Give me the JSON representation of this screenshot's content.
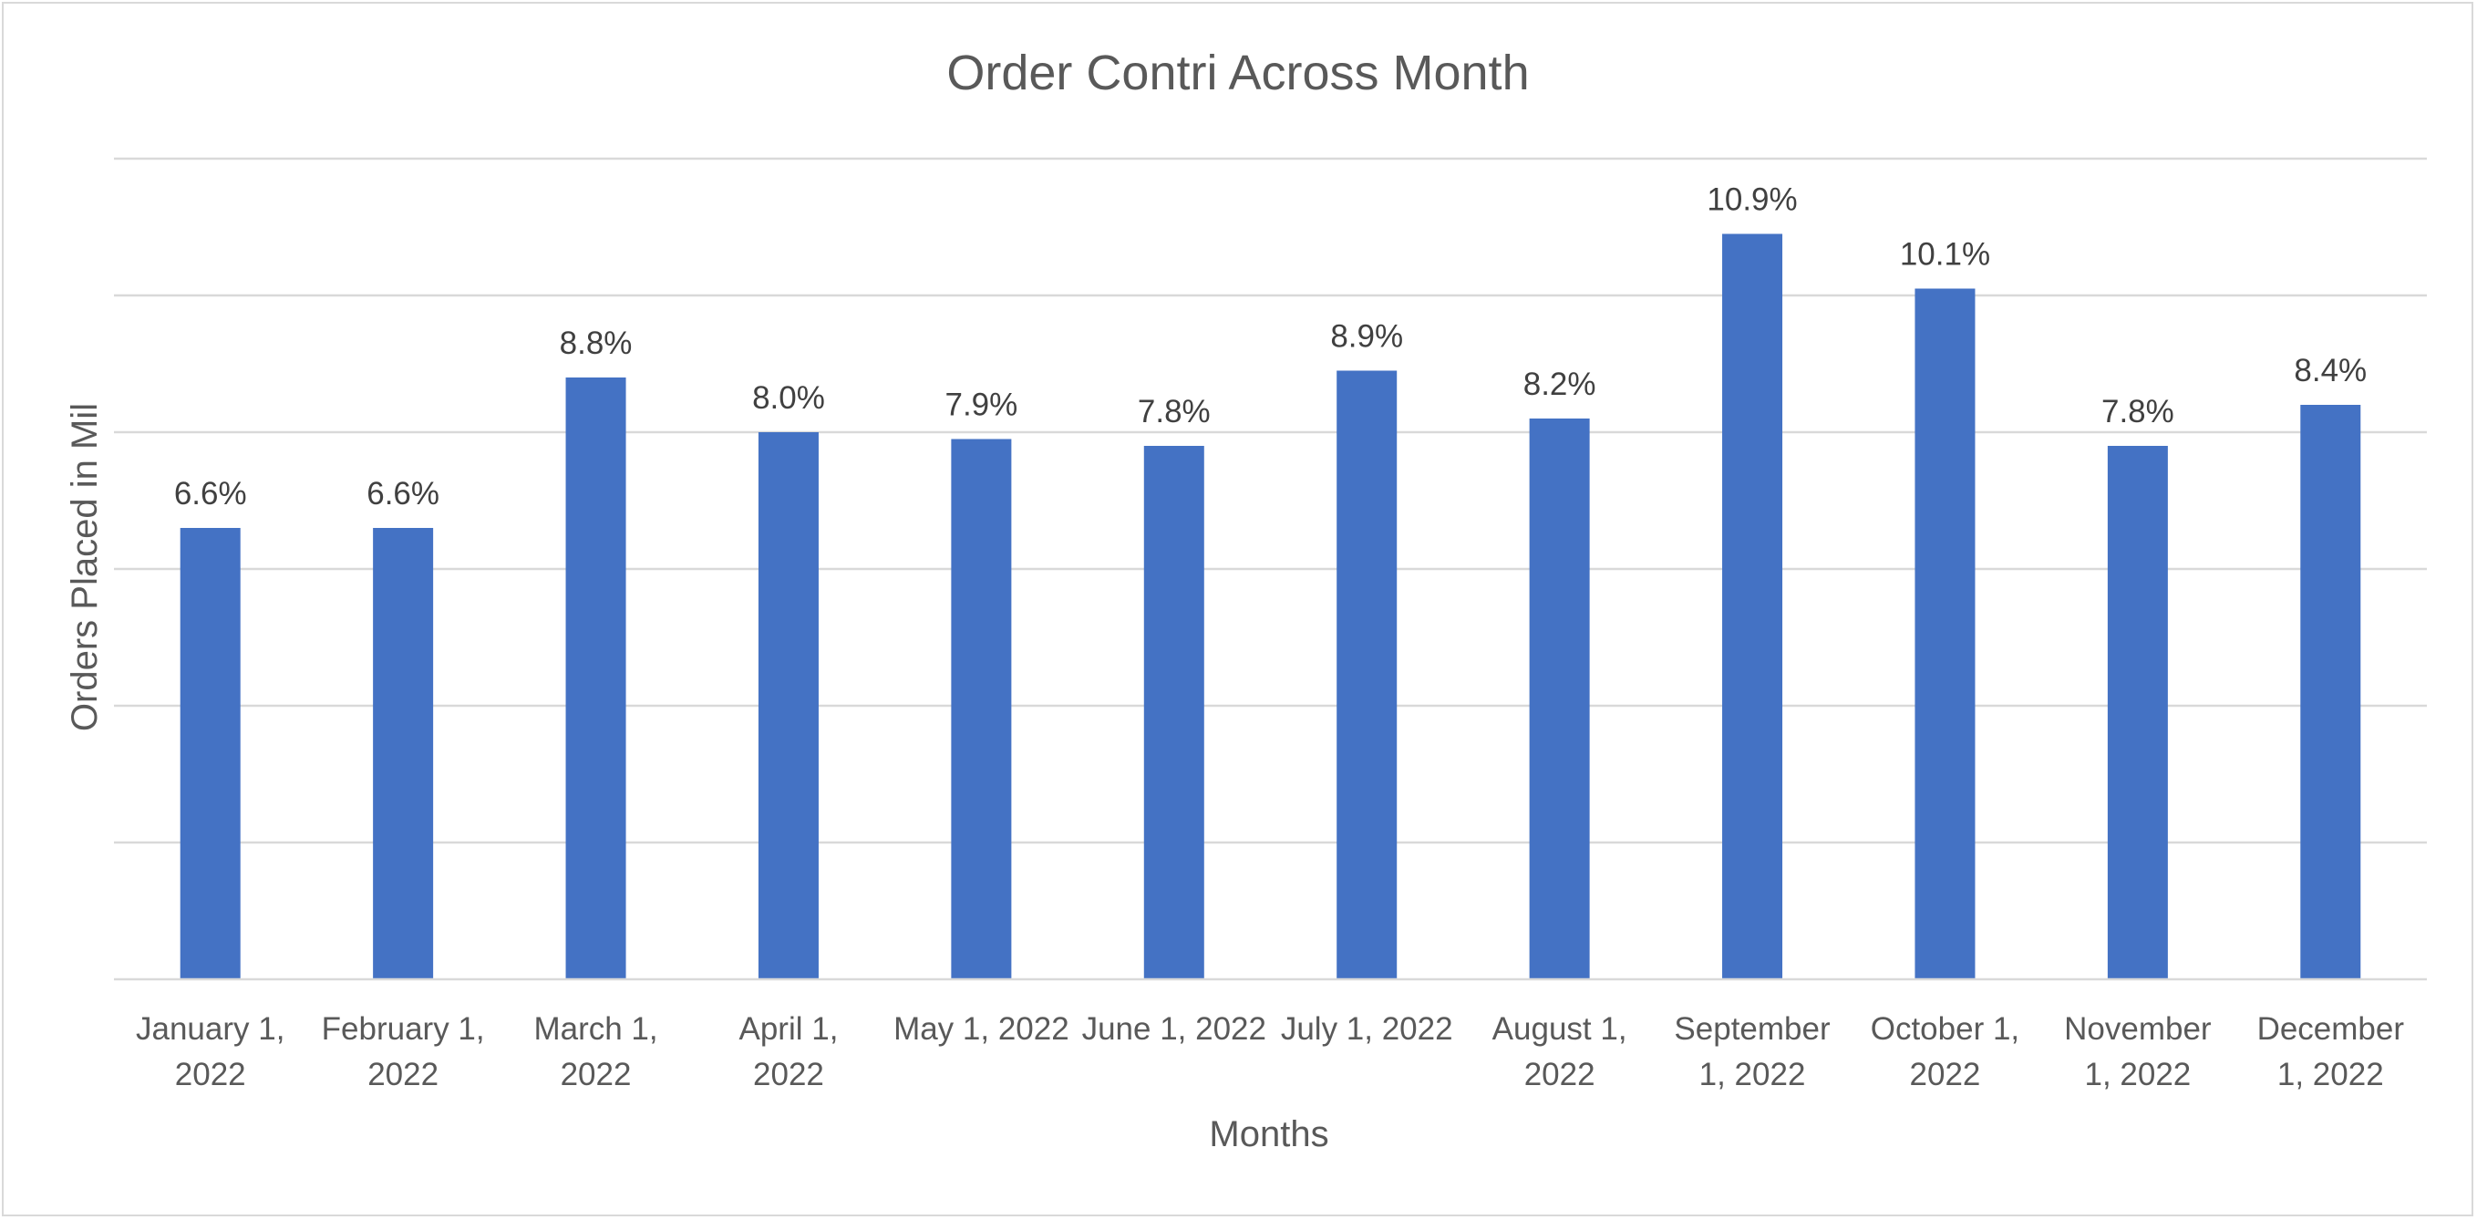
{
  "chart_data": {
    "type": "bar",
    "title": "Order Contri Across Month",
    "xlabel": "Months",
    "ylabel": "Orders Placed in Mil",
    "categories": [
      [
        "January 1,",
        "2022"
      ],
      [
        "February 1,",
        "2022"
      ],
      [
        "March 1,",
        "2022"
      ],
      [
        "April 1,",
        "2022"
      ],
      [
        "May 1, 2022"
      ],
      [
        "June 1, 2022"
      ],
      [
        "July 1, 2022"
      ],
      [
        "August 1,",
        "2022"
      ],
      [
        "September",
        "1, 2022"
      ],
      [
        "October 1,",
        "2022"
      ],
      [
        "November",
        "1, 2022"
      ],
      [
        "December",
        "1, 2022"
      ]
    ],
    "values": [
      6.6,
      6.6,
      8.8,
      8.0,
      7.9,
      7.8,
      8.9,
      8.2,
      10.9,
      10.1,
      7.8,
      8.4
    ],
    "data_labels": [
      "6.6%",
      "6.6%",
      "8.8%",
      "8.0%",
      "7.9%",
      "7.8%",
      "8.9%",
      "8.2%",
      "10.9%",
      "10.1%",
      "7.8%",
      "8.4%"
    ],
    "ylim": [
      0,
      12
    ],
    "gridlines": true,
    "y_tick_labels_visible": false,
    "legend": "none",
    "bar_color": "#4472c4"
  }
}
